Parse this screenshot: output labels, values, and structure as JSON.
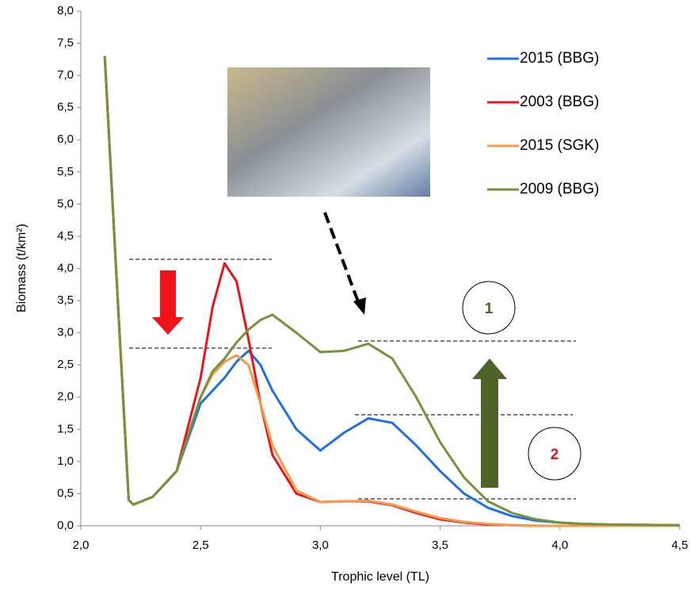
{
  "chart_data": {
    "type": "line",
    "xlabel": "Trophic level (TL)",
    "ylabel": "Biomass (t/km²)",
    "annotations": [
      "1",
      "2"
    ],
    "x": [
      2.1,
      2.15,
      2.2,
      2.22,
      2.3,
      2.4,
      2.5,
      2.55,
      2.6,
      2.65,
      2.7,
      2.75,
      2.8,
      2.9,
      3.0,
      3.1,
      3.2,
      3.3,
      3.4,
      3.5,
      3.6,
      3.7,
      3.8,
      3.9,
      4.0,
      4.1,
      4.2,
      4.5
    ],
    "series": [
      {
        "name": "2015 (BBG)",
        "color": "#1f6fe5",
        "values": [
          7.3,
          3.8,
          0.4,
          0.33,
          0.45,
          0.85,
          1.9,
          2.1,
          2.3,
          2.55,
          2.72,
          2.5,
          2.1,
          1.5,
          1.17,
          1.45,
          1.67,
          1.6,
          1.25,
          0.85,
          0.5,
          0.28,
          0.15,
          0.08,
          0.05,
          0.03,
          0.02,
          0.01
        ]
      },
      {
        "name": "2003 (BBG)",
        "color": "#e8141b",
        "values": [
          7.3,
          3.8,
          0.4,
          0.33,
          0.45,
          0.85,
          2.3,
          3.4,
          4.08,
          3.8,
          2.9,
          1.9,
          1.1,
          0.5,
          0.37,
          0.38,
          0.38,
          0.32,
          0.2,
          0.1,
          0.05,
          0.02,
          0.01,
          0,
          0,
          0,
          0,
          0
        ]
      },
      {
        "name": "2015 (SGK)",
        "color": "#f59a4a",
        "values": [
          7.3,
          3.8,
          0.4,
          0.33,
          0.45,
          0.85,
          2.0,
          2.35,
          2.55,
          2.65,
          2.5,
          1.9,
          1.25,
          0.55,
          0.37,
          0.38,
          0.39,
          0.33,
          0.22,
          0.12,
          0.06,
          0.03,
          0.01,
          0,
          0,
          0,
          0,
          0
        ]
      },
      {
        "name": "2009 (BBG)",
        "color": "#76923c",
        "values": [
          7.3,
          3.8,
          0.4,
          0.33,
          0.45,
          0.85,
          2.0,
          2.4,
          2.6,
          2.85,
          3.05,
          3.2,
          3.28,
          3.0,
          2.7,
          2.72,
          2.83,
          2.6,
          2.0,
          1.3,
          0.75,
          0.38,
          0.2,
          0.1,
          0.05,
          0.03,
          0.02,
          0.01
        ]
      }
    ],
    "xlim": [
      2.0,
      4.5
    ],
    "xticks": [
      {
        "value": 2.0,
        "label": "2,0"
      },
      {
        "value": 2.5,
        "label": "2,5"
      },
      {
        "value": 3.0,
        "label": "3,0"
      },
      {
        "value": 3.5,
        "label": "3,5"
      },
      {
        "value": 4.0,
        "label": "4,0"
      },
      {
        "value": 4.5,
        "label": "4,5"
      }
    ],
    "ylim": [
      0,
      8
    ],
    "yticks": [
      {
        "value": 0,
        "label": "0,0"
      },
      {
        "value": 0.5,
        "label": "0,5"
      },
      {
        "value": 1,
        "label": "1,0"
      },
      {
        "value": 1.5,
        "label": "1,5"
      },
      {
        "value": 2,
        "label": "2,0"
      },
      {
        "value": 2.5,
        "label": "2,5"
      },
      {
        "value": 3,
        "label": "3,0"
      },
      {
        "value": 3.5,
        "label": "3,5"
      },
      {
        "value": 4,
        "label": "4,0"
      },
      {
        "value": 4.5,
        "label": "4,5"
      },
      {
        "value": 5,
        "label": "5,0"
      },
      {
        "value": 5.5,
        "label": "5,5"
      },
      {
        "value": 6,
        "label": "6,0"
      },
      {
        "value": 6.5,
        "label": "6,5"
      },
      {
        "value": 7,
        "label": "7,0"
      },
      {
        "value": 7.5,
        "label": "7,5"
      },
      {
        "value": 8,
        "label": "8,0"
      }
    ],
    "grid": false,
    "legend": "upper right"
  }
}
